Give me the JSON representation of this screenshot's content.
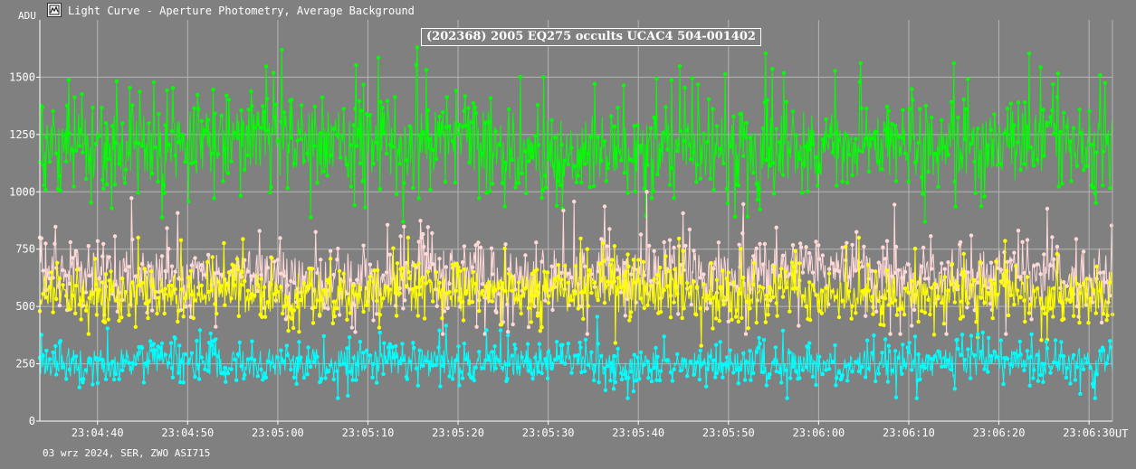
{
  "window": {
    "title": "Light Curve - Aperture Photometry, Average Background",
    "icon": "light-curve-app-icon"
  },
  "footer": "03 wrz 2024, SER, ZWO ASI715",
  "chart_data": {
    "type": "line",
    "title": "(202368) 2005 EQ275 occults UCAC4 504-001402",
    "ylabel": "ADU",
    "xlabel": "UT",
    "ylim": [
      0,
      1750
    ],
    "yticks": [
      0,
      250,
      500,
      750,
      1000,
      1250,
      1500
    ],
    "xticks": [
      "23:04:40",
      "23:04:50",
      "23:05:00",
      "23:05:10",
      "23:05:20",
      "23:05:30",
      "23:05:40",
      "23:05:50",
      "23:06:00",
      "23:06:10",
      "23:06:20",
      "23:06:30"
    ],
    "x_range": [
      "23:04:33.6",
      "23:06:32.6"
    ],
    "grid": true,
    "legend": "none",
    "point_count_per_series": 1300,
    "series": [
      {
        "color": "#00ff00",
        "mean": 1200,
        "spread": 95,
        "peak_max": 1630,
        "trough_min": 870
      },
      {
        "color": "#ffd8d8",
        "mean": 640,
        "spread": 70,
        "peak_max": 1000,
        "trough_min": 380
      },
      {
        "color": "#ffff00",
        "mean": 560,
        "spread": 55,
        "peak_max": 800,
        "trough_min": 300
      },
      {
        "color": "#00ffff",
        "mean": 255,
        "spread": 40,
        "peak_max": 455,
        "trough_min": 100
      }
    ]
  }
}
